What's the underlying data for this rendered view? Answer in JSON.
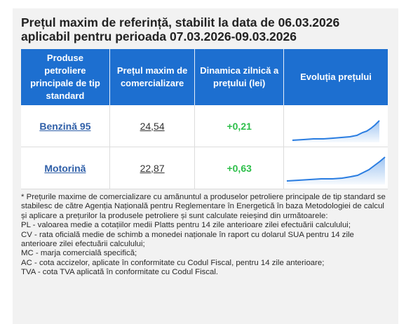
{
  "title_line1": "Prețul maxim de referință, stabilit la data de 06.03.2026",
  "title_line2": "aplicabil pentru perioada 07.03.2026-09.03.2026",
  "table": {
    "headers": [
      "Produse petroliere principale de tip standard",
      "Prețul maxim de comercializare",
      "Dinamica zilnică a prețului (lei)",
      "Evoluția prețului"
    ],
    "rows": [
      {
        "product": "Benzină 95",
        "price": "24,54",
        "delta": "+0,21"
      },
      {
        "product": "Motorină",
        "price": "22,87",
        "delta": "+0,63"
      }
    ]
  },
  "colors": {
    "header_bg": "#1d6fd0",
    "delta_positive": "#2dbf4a",
    "sparkline": "#2a7de1"
  },
  "icons": [
    "sparkline-chart-icon"
  ],
  "notes": [
    "* Prețurile maxime de comercializare cu amănuntul a produselor petroliere principale de tip standard se stabilesc de către Agenția Națională pentru Reglementare în Energetică în baza Metodologiei de calcul și aplicare a prețurilor la produsele petroliere și sunt calculate reieșind din următoarele:",
    "PL - valoarea medie a cotațiilor medii Platts pentru 14 zile anterioare zilei efectuării calculului;",
    "CV - rata oficială medie de schimb a monedei naționale în raport cu dolarul SUA pentru 14 zile anterioare zilei efectuării calculului;",
    "MC - marja comercială specifică;",
    "AC - cota accizelor, aplicate în conformitate cu Codul Fiscal, pentru 14 zile anterioare;",
    "TVA - cota TVA aplicată în conformitate cu Codul Fiscal."
  ]
}
